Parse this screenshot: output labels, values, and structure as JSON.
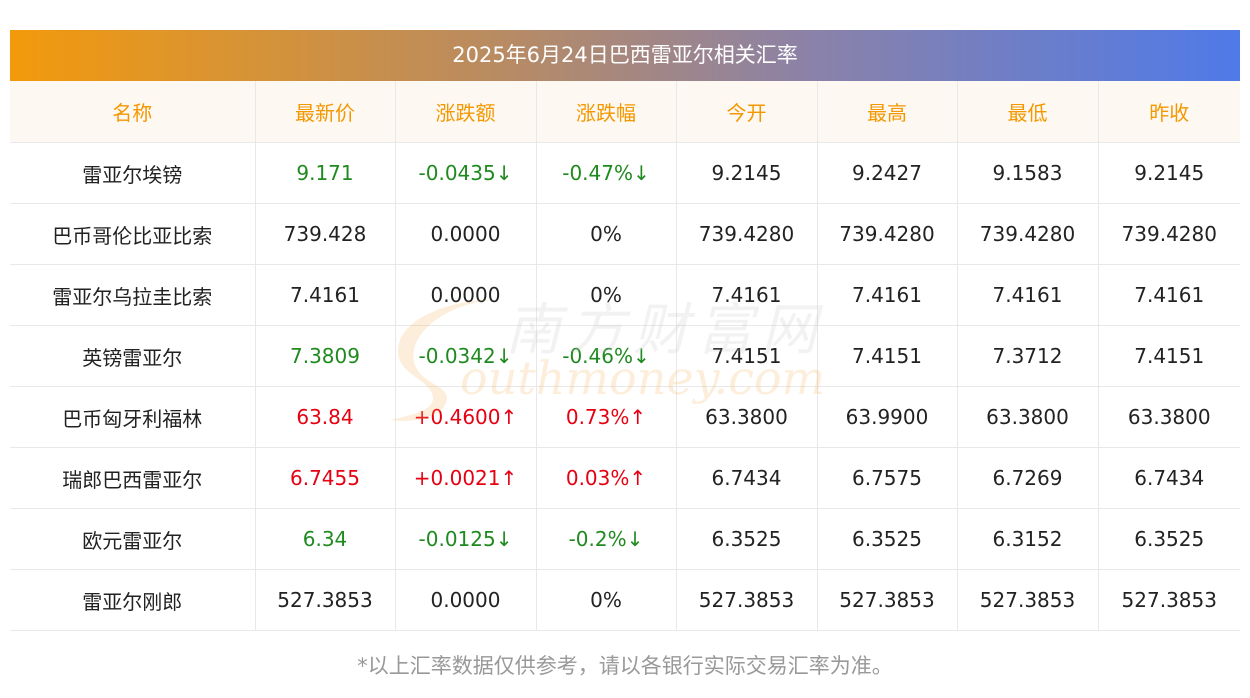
{
  "title": "2025年6月24日巴西雷亚尔相关汇率",
  "columns": [
    "名称",
    "最新价",
    "涨跌额",
    "涨跌幅",
    "今开",
    "最高",
    "最低",
    "昨收"
  ],
  "rows": [
    {
      "name": "雷亚尔埃镑",
      "latest": "9.171",
      "change": "-0.0435↓",
      "pct": "-0.47%↓",
      "open": "9.2145",
      "high": "9.2427",
      "low": "9.1583",
      "prev": "9.2145",
      "trend": "down"
    },
    {
      "name": "巴币哥伦比亚比索",
      "latest": "739.428",
      "change": "0.0000",
      "pct": "0%",
      "open": "739.4280",
      "high": "739.4280",
      "low": "739.4280",
      "prev": "739.4280",
      "trend": "flat"
    },
    {
      "name": "雷亚尔乌拉圭比索",
      "latest": "7.4161",
      "change": "0.0000",
      "pct": "0%",
      "open": "7.4161",
      "high": "7.4161",
      "low": "7.4161",
      "prev": "7.4161",
      "trend": "flat"
    },
    {
      "name": "英镑雷亚尔",
      "latest": "7.3809",
      "change": "-0.0342↓",
      "pct": "-0.46%↓",
      "open": "7.4151",
      "high": "7.4151",
      "low": "7.3712",
      "prev": "7.4151",
      "trend": "down"
    },
    {
      "name": "巴币匈牙利福林",
      "latest": "63.84",
      "change": "+0.4600↑",
      "pct": "0.73%↑",
      "open": "63.3800",
      "high": "63.9900",
      "low": "63.3800",
      "prev": "63.3800",
      "trend": "up"
    },
    {
      "name": "瑞郎巴西雷亚尔",
      "latest": "6.7455",
      "change": "+0.0021↑",
      "pct": "0.03%↑",
      "open": "6.7434",
      "high": "6.7575",
      "low": "6.7269",
      "prev": "6.7434",
      "trend": "up"
    },
    {
      "name": "欧元雷亚尔",
      "latest": "6.34",
      "change": "-0.0125↓",
      "pct": "-0.2%↓",
      "open": "6.3525",
      "high": "6.3525",
      "low": "6.3152",
      "prev": "6.3525",
      "trend": "down"
    },
    {
      "name": "雷亚尔刚郎",
      "latest": "527.3853",
      "change": "0.0000",
      "pct": "0%",
      "open": "527.3853",
      "high": "527.3853",
      "low": "527.3853",
      "prev": "527.3853",
      "trend": "flat"
    }
  ],
  "watermark": {
    "cn": "南方财富网",
    "en": "outhmoney.com"
  },
  "footnote": "*以上汇率数据仅供参考，请以各银行实际交易汇率为准。",
  "colors": {
    "accent": "#f39800",
    "up": "#e60012",
    "down": "#1f8a1f",
    "gradient_start": "#f39a0c",
    "gradient_end": "#4f7ae8"
  }
}
